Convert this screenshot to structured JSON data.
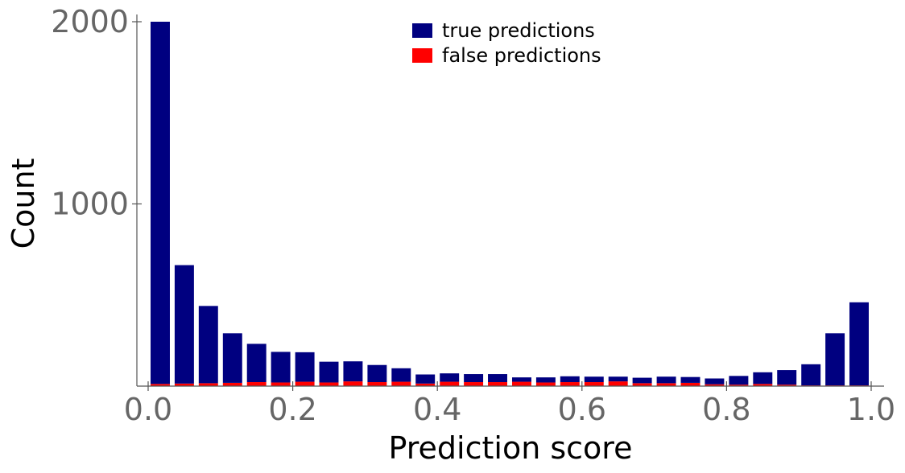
{
  "chart_data": {
    "type": "bar",
    "stacked": true,
    "title": "",
    "xlabel": "Prediction score",
    "ylabel": "Count",
    "xlim": [
      0.0,
      1.0
    ],
    "ylim": [
      0,
      2000
    ],
    "x_ticks": [
      "0.0",
      "0.2",
      "0.4",
      "0.6",
      "0.8",
      "1.0"
    ],
    "y_ticks": [
      "2000",
      "1000"
    ],
    "grid": false,
    "legend_position": "top-center",
    "x": [
      0.0167,
      0.05,
      0.0833,
      0.1167,
      0.15,
      0.1833,
      0.2167,
      0.25,
      0.2833,
      0.3167,
      0.35,
      0.3833,
      0.4167,
      0.45,
      0.4833,
      0.5167,
      0.55,
      0.5833,
      0.6167,
      0.65,
      0.6833,
      0.7167,
      0.75,
      0.7833,
      0.8167,
      0.85,
      0.8833,
      0.9167,
      0.95,
      0.9833
    ],
    "series": [
      {
        "name": "false predictions",
        "color": "#ff0000",
        "values": [
          12,
          14,
          16,
          18,
          22,
          20,
          24,
          20,
          26,
          22,
          24,
          14,
          24,
          22,
          22,
          24,
          20,
          22,
          22,
          26,
          16,
          16,
          18,
          10,
          8,
          12,
          8,
          4,
          4,
          4
        ]
      },
      {
        "name": "true predictions",
        "color": "#000080",
        "values": [
          1988,
          650,
          424,
          272,
          210,
          168,
          162,
          114,
          110,
          94,
          74,
          50,
          46,
          44,
          44,
          24,
          28,
          32,
          30,
          26,
          30,
          36,
          32,
          32,
          48,
          64,
          80,
          116,
          286,
          456
        ]
      }
    ],
    "legend": [
      {
        "label": "true predictions",
        "color": "#000080"
      },
      {
        "label": "false predictions",
        "color": "#ff0000"
      }
    ]
  }
}
